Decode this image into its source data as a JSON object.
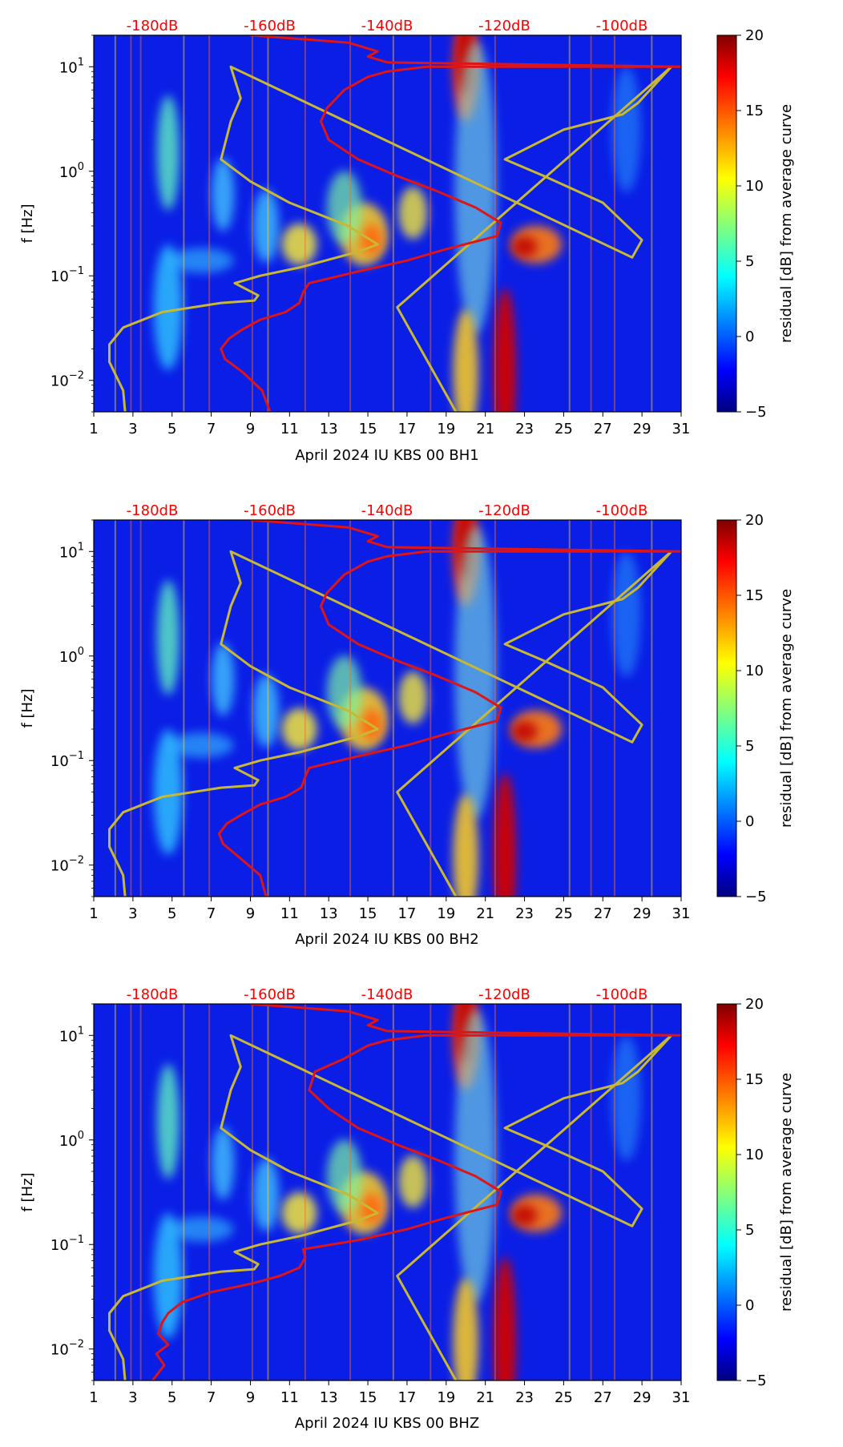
{
  "chart_data": [
    {
      "type": "heatmap",
      "xlabel": "April 2024 IU KBS 00 BH1",
      "ylabel": "f [Hz]",
      "xlim": [
        1,
        31
      ],
      "ylim": [
        0.005,
        20
      ],
      "yscale": "log",
      "x_ticks": [
        "1",
        "3",
        "5",
        "7",
        "9",
        "11",
        "13",
        "15",
        "17",
        "19",
        "21",
        "23",
        "25",
        "27",
        "29",
        "31"
      ],
      "y_ticks": [
        {
          "base": "10",
          "exp": "1",
          "value": 10
        },
        {
          "base": "10",
          "exp": "0",
          "value": 1
        },
        {
          "base": "10",
          "exp": "−1",
          "value": 0.1
        },
        {
          "base": "10",
          "exp": "−2",
          "value": 0.01
        }
      ],
      "top_labels": [
        "-180dB",
        "-160dB",
        "-140dB",
        "-120dB",
        "-100dB"
      ],
      "colorbar": {
        "label": "residual [dB] from average curve",
        "min": -5,
        "max": 20,
        "ticks": [
          "20",
          "15",
          "10",
          "5",
          "0",
          "−5"
        ]
      },
      "yellow_curve": [
        [
          2.6,
          0.005
        ],
        [
          2.5,
          0.008
        ],
        [
          1.8,
          0.015
        ],
        [
          1.8,
          0.022
        ],
        [
          2.5,
          0.032
        ],
        [
          4.5,
          0.045
        ],
        [
          7.5,
          0.055
        ],
        [
          9.2,
          0.058
        ],
        [
          9.4,
          0.065
        ],
        [
          8.2,
          0.085
        ],
        [
          9.5,
          0.1
        ],
        [
          11.5,
          0.12
        ],
        [
          14.5,
          0.17
        ],
        [
          15.5,
          0.2
        ],
        [
          14,
          0.3
        ],
        [
          11,
          0.5
        ],
        [
          9,
          0.8
        ],
        [
          7.5,
          1.3
        ],
        [
          8,
          3
        ],
        [
          8.5,
          5
        ],
        [
          8,
          10
        ],
        [
          28.5,
          0.15
        ],
        [
          29,
          0.22
        ],
        [
          27,
          0.5
        ],
        [
          24,
          0.9
        ],
        [
          22,
          1.3
        ],
        [
          25,
          2.5
        ],
        [
          28,
          3.5
        ],
        [
          28.8,
          4.5
        ],
        [
          30.5,
          10
        ],
        [
          16.5,
          0.05
        ],
        [
          19.5,
          0.005
        ]
      ],
      "red_curve": [
        [
          10,
          0.005
        ],
        [
          9.6,
          0.008
        ],
        [
          8.6,
          0.012
        ],
        [
          7.7,
          0.016
        ],
        [
          7.5,
          0.02
        ],
        [
          7.9,
          0.025
        ],
        [
          8.5,
          0.03
        ],
        [
          9.5,
          0.038
        ],
        [
          10.8,
          0.045
        ],
        [
          11.5,
          0.055
        ],
        [
          11.7,
          0.07
        ],
        [
          12,
          0.085
        ],
        [
          14.5,
          0.11
        ],
        [
          17,
          0.14
        ],
        [
          19,
          0.18
        ],
        [
          21.6,
          0.24
        ],
        [
          21.8,
          0.32
        ],
        [
          20.5,
          0.45
        ],
        [
          18.5,
          0.65
        ],
        [
          16.5,
          0.9
        ],
        [
          14.5,
          1.3
        ],
        [
          13,
          2
        ],
        [
          12.6,
          3
        ],
        [
          12.9,
          4
        ],
        [
          13.8,
          6
        ],
        [
          15,
          8
        ],
        [
          16,
          9
        ],
        [
          18,
          10
        ],
        [
          31,
          10
        ],
        [
          16,
          11
        ],
        [
          15,
          12.5
        ],
        [
          15.5,
          14
        ],
        [
          14,
          17
        ],
        [
          9,
          20
        ]
      ]
    },
    {
      "type": "heatmap",
      "xlabel": "April 2024 IU KBS 00 BH2",
      "ylabel": "f [Hz]",
      "xlim": [
        1,
        31
      ],
      "ylim": [
        0.005,
        20
      ],
      "yscale": "log",
      "x_ticks": [
        "1",
        "3",
        "5",
        "7",
        "9",
        "11",
        "13",
        "15",
        "17",
        "19",
        "21",
        "23",
        "25",
        "27",
        "29",
        "31"
      ],
      "y_ticks": [
        {
          "base": "10",
          "exp": "1",
          "value": 10
        },
        {
          "base": "10",
          "exp": "0",
          "value": 1
        },
        {
          "base": "10",
          "exp": "−1",
          "value": 0.1
        },
        {
          "base": "10",
          "exp": "−2",
          "value": 0.01
        }
      ],
      "top_labels": [
        "-180dB",
        "-160dB",
        "-140dB",
        "-120dB",
        "-100dB"
      ],
      "colorbar": {
        "label": "residual [dB] from average curve",
        "min": -5,
        "max": 20,
        "ticks": [
          "20",
          "15",
          "10",
          "5",
          "0",
          "−5"
        ]
      },
      "yellow_curve": [
        [
          2.6,
          0.005
        ],
        [
          2.5,
          0.008
        ],
        [
          1.8,
          0.015
        ],
        [
          1.8,
          0.022
        ],
        [
          2.5,
          0.032
        ],
        [
          4.5,
          0.045
        ],
        [
          7.5,
          0.055
        ],
        [
          9.2,
          0.058
        ],
        [
          9.4,
          0.065
        ],
        [
          8.2,
          0.085
        ],
        [
          9.5,
          0.1
        ],
        [
          11.5,
          0.12
        ],
        [
          14.5,
          0.17
        ],
        [
          15.5,
          0.2
        ],
        [
          14,
          0.3
        ],
        [
          11,
          0.5
        ],
        [
          9,
          0.8
        ],
        [
          7.5,
          1.3
        ],
        [
          8,
          3
        ],
        [
          8.5,
          5
        ],
        [
          8,
          10
        ],
        [
          28.5,
          0.15
        ],
        [
          29,
          0.22
        ],
        [
          27,
          0.5
        ],
        [
          24,
          0.9
        ],
        [
          22,
          1.3
        ],
        [
          25,
          2.5
        ],
        [
          28,
          3.5
        ],
        [
          28.8,
          4.5
        ],
        [
          30.5,
          10
        ],
        [
          16.5,
          0.05
        ],
        [
          19.5,
          0.005
        ]
      ],
      "red_curve": [
        [
          9.8,
          0.005
        ],
        [
          9.5,
          0.008
        ],
        [
          8.4,
          0.012
        ],
        [
          7.6,
          0.016
        ],
        [
          7.4,
          0.02
        ],
        [
          7.8,
          0.025
        ],
        [
          8.5,
          0.03
        ],
        [
          9.5,
          0.038
        ],
        [
          10.8,
          0.045
        ],
        [
          11.6,
          0.055
        ],
        [
          11.8,
          0.07
        ],
        [
          12,
          0.085
        ],
        [
          14.5,
          0.11
        ],
        [
          17,
          0.14
        ],
        [
          19,
          0.18
        ],
        [
          21.6,
          0.24
        ],
        [
          21.8,
          0.32
        ],
        [
          20.5,
          0.45
        ],
        [
          18.5,
          0.65
        ],
        [
          16.5,
          0.9
        ],
        [
          14.5,
          1.3
        ],
        [
          13,
          2
        ],
        [
          12.6,
          3
        ],
        [
          12.9,
          4
        ],
        [
          13.8,
          6
        ],
        [
          15,
          8
        ],
        [
          16,
          9
        ],
        [
          18,
          10
        ],
        [
          31,
          10
        ],
        [
          16,
          11
        ],
        [
          15,
          12.5
        ],
        [
          15.5,
          14
        ],
        [
          14,
          17
        ],
        [
          9,
          20
        ]
      ]
    },
    {
      "type": "heatmap",
      "xlabel": "April 2024 IU KBS 00 BHZ",
      "ylabel": "f [Hz]",
      "xlim": [
        1,
        31
      ],
      "ylim": [
        0.005,
        20
      ],
      "yscale": "log",
      "x_ticks": [
        "1",
        "3",
        "5",
        "7",
        "9",
        "11",
        "13",
        "15",
        "17",
        "19",
        "21",
        "23",
        "25",
        "27",
        "29",
        "31"
      ],
      "y_ticks": [
        {
          "base": "10",
          "exp": "1",
          "value": 10
        },
        {
          "base": "10",
          "exp": "0",
          "value": 1
        },
        {
          "base": "10",
          "exp": "−1",
          "value": 0.1
        },
        {
          "base": "10",
          "exp": "−2",
          "value": 0.01
        }
      ],
      "top_labels": [
        "-180dB",
        "-160dB",
        "-140dB",
        "-120dB",
        "-100dB"
      ],
      "colorbar": {
        "label": "residual [dB] from average curve",
        "min": -5,
        "max": 20,
        "ticks": [
          "20",
          "15",
          "10",
          "5",
          "0",
          "−5"
        ]
      },
      "yellow_curve": [
        [
          2.6,
          0.005
        ],
        [
          2.5,
          0.008
        ],
        [
          1.8,
          0.015
        ],
        [
          1.8,
          0.022
        ],
        [
          2.5,
          0.032
        ],
        [
          4.5,
          0.045
        ],
        [
          7.5,
          0.055
        ],
        [
          9.2,
          0.058
        ],
        [
          9.4,
          0.065
        ],
        [
          8.2,
          0.085
        ],
        [
          9.5,
          0.1
        ],
        [
          11.5,
          0.12
        ],
        [
          14.5,
          0.17
        ],
        [
          15.5,
          0.2
        ],
        [
          14,
          0.3
        ],
        [
          11,
          0.5
        ],
        [
          9,
          0.8
        ],
        [
          7.5,
          1.3
        ],
        [
          8,
          3
        ],
        [
          8.5,
          5
        ],
        [
          8,
          10
        ],
        [
          28.5,
          0.15
        ],
        [
          29,
          0.22
        ],
        [
          27,
          0.5
        ],
        [
          24,
          0.9
        ],
        [
          22,
          1.3
        ],
        [
          25,
          2.5
        ],
        [
          28,
          3.5
        ],
        [
          28.8,
          4.5
        ],
        [
          30.5,
          10
        ],
        [
          16.5,
          0.05
        ],
        [
          19.5,
          0.005
        ]
      ],
      "red_curve": [
        [
          4,
          0.005
        ],
        [
          4.6,
          0.007
        ],
        [
          4.2,
          0.009
        ],
        [
          4.8,
          0.011
        ],
        [
          4.3,
          0.014
        ],
        [
          4.5,
          0.018
        ],
        [
          4.8,
          0.022
        ],
        [
          5.5,
          0.028
        ],
        [
          7,
          0.035
        ],
        [
          9,
          0.042
        ],
        [
          10.5,
          0.05
        ],
        [
          11.5,
          0.06
        ],
        [
          11.8,
          0.075
        ],
        [
          11.7,
          0.09
        ],
        [
          14.5,
          0.11
        ],
        [
          17,
          0.14
        ],
        [
          19,
          0.18
        ],
        [
          21.6,
          0.24
        ],
        [
          21.8,
          0.32
        ],
        [
          20.5,
          0.45
        ],
        [
          18.5,
          0.65
        ],
        [
          16.5,
          0.9
        ],
        [
          14.5,
          1.3
        ],
        [
          13,
          2
        ],
        [
          12,
          3
        ],
        [
          12.3,
          4.5
        ],
        [
          13.8,
          6
        ],
        [
          15,
          8
        ],
        [
          16,
          9
        ],
        [
          18,
          10
        ],
        [
          31,
          10
        ],
        [
          16,
          11
        ],
        [
          15,
          12.5
        ],
        [
          15.5,
          14
        ],
        [
          14,
          17
        ],
        [
          9,
          20
        ]
      ]
    }
  ]
}
